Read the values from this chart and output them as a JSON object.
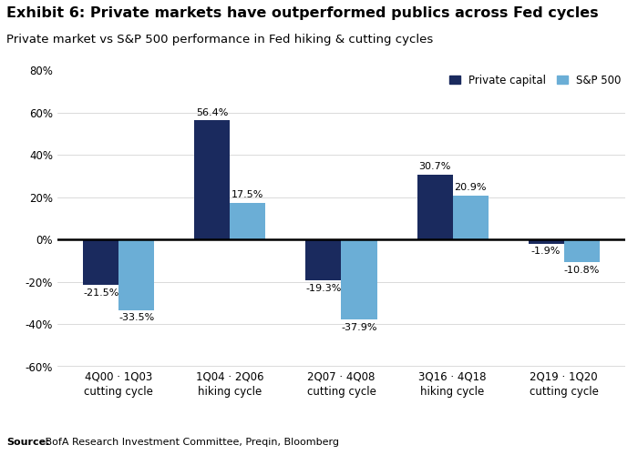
{
  "title": "Exhibit 6: Private markets have outperformed publics across Fed cycles",
  "subtitle": "Private market vs S&P 500 performance in Fed hiking & cutting cycles",
  "source_bold": "Source:",
  "source_normal": " BofA Research Investment Committee, Preqin, Bloomberg",
  "categories": [
    "4Q00 · 1Q03\ncutting cycle",
    "1Q04 · 2Q06\nhiking cycle",
    "2Q07 · 4Q08\ncutting cycle",
    "3Q16 · 4Q18\nhiking cycle",
    "2Q19 · 1Q20\ncutting cycle"
  ],
  "private_capital": [
    -21.5,
    56.4,
    -19.3,
    30.7,
    -1.9
  ],
  "sp500": [
    -33.5,
    17.5,
    -37.9,
    20.9,
    -10.8
  ],
  "private_color": "#1a2a5e",
  "sp500_color": "#6baed6",
  "bar_width": 0.32,
  "ylim": [
    -60,
    80
  ],
  "yticks": [
    -60,
    -40,
    -20,
    0,
    20,
    40,
    60,
    80
  ],
  "legend_labels": [
    "Private capital",
    "S&P 500"
  ],
  "background_color": "#ffffff",
  "title_fontsize": 11.5,
  "subtitle_fontsize": 9.5,
  "label_fontsize": 8,
  "tick_fontsize": 8.5,
  "source_fontsize": 8
}
